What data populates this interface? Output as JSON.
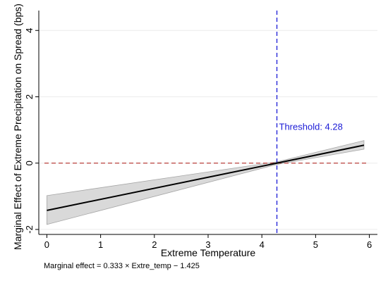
{
  "chart_data": {
    "type": "line",
    "title": "",
    "xlabel": "Extreme Temperature",
    "ylabel": "Marginal Effect of Extreme Precipitation on Spread (bps)",
    "xlim": [
      -0.15,
      6.15
    ],
    "ylim": [
      -2.15,
      4.6
    ],
    "x_ticks": [
      0,
      1,
      2,
      3,
      4,
      5,
      6
    ],
    "y_ticks": [
      -2,
      0,
      2,
      4
    ],
    "grid": "horizontal",
    "legend": "none",
    "series": [
      {
        "role": "marginal-effect",
        "x": [
          0,
          5.9
        ],
        "y": [
          -1.425,
          0.54
        ],
        "color": "#000000"
      }
    ],
    "confidence_band": {
      "x": [
        0,
        4.28,
        5.9
      ],
      "lower": [
        -1.85,
        -0.04,
        0.42
      ],
      "upper": [
        -0.98,
        0.04,
        0.68
      ],
      "color": "#d9d9d9"
    },
    "reference_lines": [
      {
        "orientation": "horizontal",
        "value": 0,
        "color": "#c0504d",
        "style": "dashed"
      },
      {
        "orientation": "vertical",
        "value": 4.28,
        "color": "#1a1ad6",
        "style": "dashed"
      }
    ],
    "annotations": [
      {
        "text": "Threshold: 4.28",
        "x": 4.28,
        "y": 1.0,
        "color": "#1a1ad6"
      }
    ]
  },
  "footnote": "Marginal effect = 0.333 × Extre_temp − 1.425"
}
